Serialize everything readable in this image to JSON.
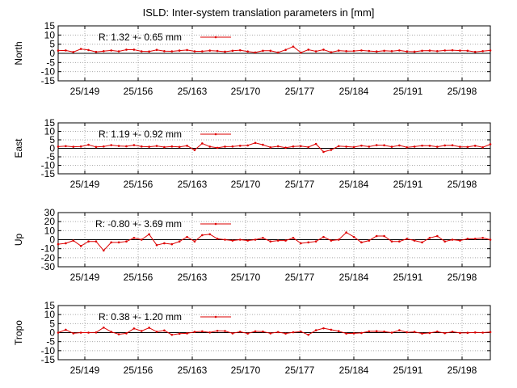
{
  "title": "ISLD: Inter-system translation parameters in [mm]",
  "colors": {
    "series": "#dd0000",
    "grid": "#aaaaaa",
    "axis": "#000000"
  },
  "chart_data": [
    {
      "type": "line",
      "ylabel": "North",
      "ylim": [
        -15,
        15
      ],
      "yticks": [
        15,
        10,
        5,
        0,
        -5,
        -10,
        -15
      ],
      "xlim": [
        25.1441,
        25.2014
      ],
      "xticks": [
        "25/149",
        "25/156",
        "25/163",
        "25/170",
        "25/177",
        "25/184",
        "25/191",
        "25/198"
      ],
      "legend": "R:  1.32 +- 0.65 mm",
      "values": [
        1.5,
        1.6,
        0.7,
        2.4,
        1.8,
        0.8,
        1.2,
        1.6,
        1.1,
        2.0,
        2.0,
        1.1,
        1.0,
        1.9,
        1.2,
        1.1,
        1.5,
        1.8,
        1.1,
        1.1,
        1.5,
        1.3,
        0.9,
        1.4,
        1.7,
        1.0,
        0.5,
        1.4,
        1.4,
        0.5,
        1.9,
        3.7,
        0.4,
        2.0,
        1.1,
        2.0,
        0.6,
        1.5,
        1.2,
        1.3,
        1.6,
        1.3,
        1.0,
        1.4,
        1.2,
        1.6,
        1.0,
        0.9,
        1.4,
        1.5,
        1.2,
        1.6,
        1.7,
        1.5,
        1.4,
        0.8,
        1.2,
        1.6
      ]
    },
    {
      "type": "line",
      "ylabel": "East",
      "ylim": [
        -15,
        15
      ],
      "yticks": [
        15,
        10,
        5,
        0,
        -5,
        -10,
        -15
      ],
      "xlim": [
        25.1441,
        25.2014
      ],
      "xticks": [
        "25/149",
        "25/156",
        "25/163",
        "25/170",
        "25/177",
        "25/184",
        "25/191",
        "25/198"
      ],
      "legend": "R:  1.19 +- 0.92 mm",
      "values": [
        1.0,
        1.3,
        0.9,
        1.1,
        2.1,
        0.8,
        1.1,
        1.9,
        1.4,
        1.2,
        1.9,
        1.1,
        0.9,
        1.4,
        0.7,
        1.1,
        0.8,
        1.5,
        -1.0,
        2.9,
        1.0,
        0.3,
        1.0,
        1.1,
        1.5,
        1.7,
        3.2,
        2.1,
        0.6,
        1.2,
        0.4,
        1.1,
        1.3,
        0.7,
        2.6,
        -2.1,
        -0.9,
        1.3,
        1.0,
        0.7,
        1.6,
        1.0,
        1.9,
        1.8,
        0.9,
        1.7,
        0.6,
        1.0,
        1.6,
        1.5,
        0.9,
        1.7,
        1.8,
        0.9,
        0.8,
        1.5,
        0.6,
        2.4
      ]
    },
    {
      "type": "line",
      "ylabel": "Up",
      "ylim": [
        -30,
        30
      ],
      "yticks": [
        30,
        20,
        10,
        0,
        -10,
        -20,
        -30
      ],
      "xlim": [
        25.1441,
        25.2014
      ],
      "xticks": [
        "25/149",
        "25/156",
        "25/163",
        "25/170",
        "25/177",
        "25/184",
        "25/191",
        "25/198"
      ],
      "legend": "R:  -0.80 +- 3.69 mm",
      "values": [
        -5,
        -4,
        -1,
        -7,
        -2,
        -2,
        -12,
        -3,
        -3,
        -2,
        2,
        0,
        6,
        -6,
        -4,
        -5,
        -2,
        3,
        -2,
        5,
        6,
        1,
        0,
        -1,
        0,
        -1,
        0,
        2,
        -2,
        -1,
        -1,
        2,
        -4,
        -3,
        -2,
        3,
        -1,
        0,
        8,
        3,
        -3,
        -1,
        4,
        4,
        -2,
        -2,
        1,
        -1,
        -3,
        2,
        4,
        -2,
        0,
        -1,
        1,
        1,
        2,
        0
      ]
    },
    {
      "type": "line",
      "ylabel": "Tropo",
      "ylim": [
        -15,
        15
      ],
      "yticks": [
        15,
        10,
        5,
        0,
        -5,
        -10,
        -15
      ],
      "xlim": [
        25.1441,
        25.2014
      ],
      "xticks": [
        "25/149",
        "25/156",
        "25/163",
        "25/170",
        "25/177",
        "25/184",
        "25/191",
        "25/198"
      ],
      "legend": "R:  0.38 +- 1.20 mm",
      "values": [
        0.0,
        1.6,
        -0.4,
        0.0,
        0.0,
        0.1,
        2.8,
        0.4,
        -0.9,
        -0.4,
        2.3,
        0.9,
        2.7,
        0.5,
        1.2,
        -1.2,
        -0.6,
        -0.4,
        0.4,
        0.7,
        0.1,
        1.0,
        0.9,
        -0.4,
        0.5,
        -0.5,
        0.7,
        0.6,
        -0.4,
        0.3,
        -0.5,
        0.2,
        0.6,
        -1.2,
        1.3,
        2.4,
        1.6,
        0.8,
        -0.5,
        -0.4,
        -0.2,
        0.7,
        0.8,
        0.6,
        0.0,
        1.3,
        0.2,
        0.4,
        -0.5,
        -0.2,
        0.6,
        -0.3,
        0.5,
        -0.2,
        -0.1,
        0.1,
        0.0,
        0.3
      ]
    }
  ]
}
